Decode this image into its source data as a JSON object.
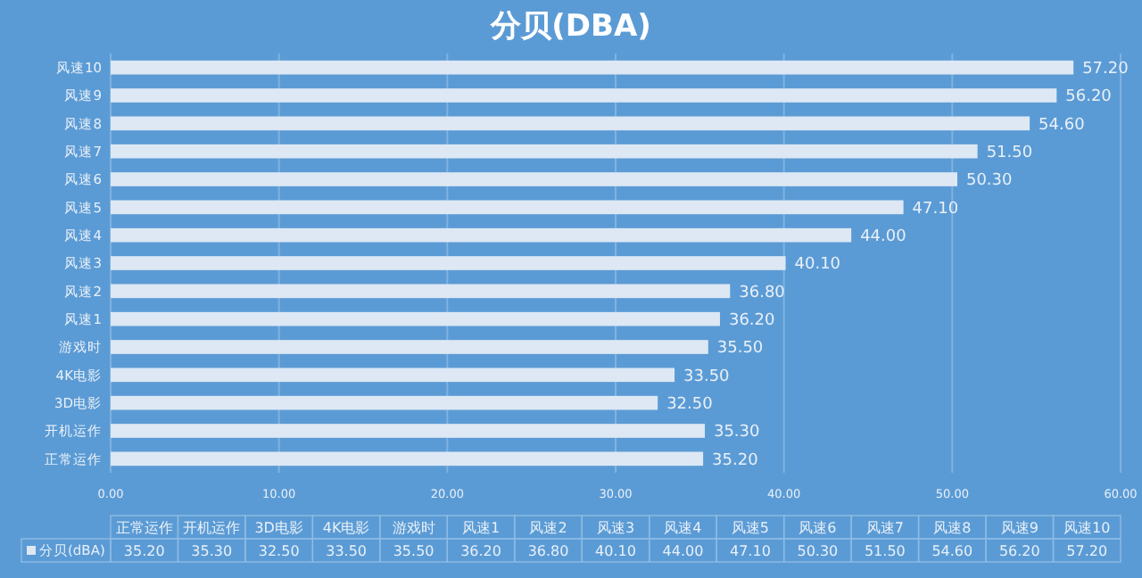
{
  "chart_data": {
    "type": "bar",
    "orientation": "horizontal",
    "title": "分贝(DBA)",
    "categories": [
      "风速10",
      "风速9",
      "风速8",
      "风速7",
      "风速6",
      "风速5",
      "风速4",
      "风速3",
      "风速2",
      "风速1",
      "游戏时",
      "4K电影",
      "3D电影",
      "开机运作",
      "正常运作"
    ],
    "series": [
      {
        "name": "分贝(dBA)",
        "color": "#dde8f4",
        "values": [
          57.2,
          56.2,
          54.6,
          51.5,
          50.3,
          47.1,
          44.0,
          40.1,
          36.8,
          36.2,
          35.5,
          33.5,
          32.5,
          35.3,
          35.2
        ],
        "value_labels": [
          "57.20",
          "56.20",
          "54.60",
          "51.50",
          "50.30",
          "47.10",
          "44.00",
          "40.10",
          "36.80",
          "36.20",
          "35.50",
          "33.50",
          "32.50",
          "35.30",
          "35.20"
        ]
      }
    ],
    "xlim": [
      0,
      60
    ],
    "xticks": [
      {
        "value": 0,
        "label": "0.00"
      },
      {
        "value": 10,
        "label": "10.00"
      },
      {
        "value": 20,
        "label": "20.00"
      },
      {
        "value": 30,
        "label": "30.00"
      },
      {
        "value": 40,
        "label": "40.00"
      },
      {
        "value": 50,
        "label": "50.00"
      },
      {
        "value": 60,
        "label": "60.00"
      }
    ],
    "grid": "x",
    "legend": "bottom"
  }
}
